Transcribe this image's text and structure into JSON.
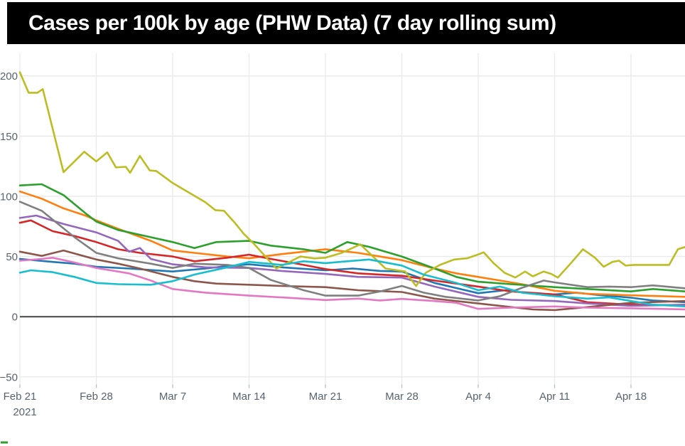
{
  "title_banner": {
    "text": "Cases per 100k by age (PHW Data) (7 day rolling sum)",
    "background": "#000000",
    "text_color": "#ffffff"
  },
  "chart_data": {
    "type": "line",
    "title": "Cases per 100k by age (PHW Data) (7 day rolling sum)",
    "xlabel": "",
    "ylabel": "",
    "x_ticks": [
      {
        "day": 0,
        "label": "Feb 21",
        "sublabel": "2021"
      },
      {
        "day": 7,
        "label": "Feb 28",
        "sublabel": ""
      },
      {
        "day": 14,
        "label": "Mar 7",
        "sublabel": ""
      },
      {
        "day": 21,
        "label": "Mar 14",
        "sublabel": ""
      },
      {
        "day": 28,
        "label": "Mar 21",
        "sublabel": ""
      },
      {
        "day": 35,
        "label": "Mar 28",
        "sublabel": ""
      },
      {
        "day": 42,
        "label": "Apr 4",
        "sublabel": ""
      },
      {
        "day": 49,
        "label": "Apr 11",
        "sublabel": ""
      },
      {
        "day": 56,
        "label": "Apr 18",
        "sublabel": ""
      }
    ],
    "y_ticks": [
      {
        "value": 200,
        "label": "200"
      },
      {
        "value": 150,
        "label": "150"
      },
      {
        "value": 100,
        "label": "100"
      },
      {
        "value": 50,
        "label": "50"
      },
      {
        "value": 0,
        "label": "0"
      },
      {
        "value": -50,
        "label": "−50"
      }
    ],
    "ylim": [
      -58,
      219
    ],
    "xlim_days": [
      0,
      61
    ],
    "grid": true,
    "zero_line_color": "#444444",
    "grid_color": "#e9e9e9",
    "tick_text_color": "#57636d",
    "legend_visible": false,
    "legend_fragment_color": "#2ca02c",
    "series": [
      {
        "name": "blue",
        "color": "#1f77b4",
        "points": [
          [
            0,
            48
          ],
          [
            3,
            45.5
          ],
          [
            5,
            44
          ],
          [
            7,
            41.5
          ],
          [
            10,
            40
          ],
          [
            14,
            37.5
          ],
          [
            17,
            40
          ],
          [
            19,
            42
          ],
          [
            21,
            43.5
          ],
          [
            24,
            41
          ],
          [
            28,
            38.5
          ],
          [
            30.5,
            40
          ],
          [
            33,
            38
          ],
          [
            35,
            37.5
          ],
          [
            38,
            28
          ],
          [
            42,
            19.5
          ],
          [
            44.5,
            22
          ],
          [
            47,
            19
          ],
          [
            49,
            18.5
          ],
          [
            51,
            20
          ],
          [
            53,
            18
          ],
          [
            56,
            15.8
          ],
          [
            58,
            13.5
          ],
          [
            61,
            12
          ]
        ]
      },
      {
        "name": "orange",
        "color": "#ff7f0e",
        "points": [
          [
            0,
            104
          ],
          [
            2,
            98
          ],
          [
            4,
            90
          ],
          [
            6,
            84
          ],
          [
            7,
            80
          ],
          [
            9,
            73
          ],
          [
            12,
            63
          ],
          [
            14,
            55
          ],
          [
            16,
            53
          ],
          [
            19,
            50
          ],
          [
            21,
            48.5
          ],
          [
            24,
            52
          ],
          [
            26,
            54
          ],
          [
            28,
            56
          ],
          [
            31,
            53
          ],
          [
            35,
            47
          ],
          [
            38,
            40
          ],
          [
            40,
            36
          ],
          [
            42,
            33
          ],
          [
            44,
            30
          ],
          [
            46,
            27
          ],
          [
            49,
            21.5
          ],
          [
            52,
            19
          ],
          [
            56,
            17.7
          ],
          [
            61,
            16.5
          ]
        ]
      },
      {
        "name": "green",
        "color": "#2ca02c",
        "points": [
          [
            0,
            109
          ],
          [
            2,
            110
          ],
          [
            4,
            101
          ],
          [
            6,
            86
          ],
          [
            7,
            79
          ],
          [
            9,
            72
          ],
          [
            12,
            66
          ],
          [
            14,
            62
          ],
          [
            16,
            57
          ],
          [
            18,
            62
          ],
          [
            21,
            63
          ],
          [
            23,
            59
          ],
          [
            26,
            56
          ],
          [
            28,
            53
          ],
          [
            30,
            62
          ],
          [
            32,
            58
          ],
          [
            35,
            50
          ],
          [
            38,
            40
          ],
          [
            40,
            33
          ],
          [
            42,
            29
          ],
          [
            45,
            27
          ],
          [
            49,
            24.5
          ],
          [
            52,
            23
          ],
          [
            56,
            21
          ],
          [
            58,
            23
          ],
          [
            61,
            21
          ]
        ]
      },
      {
        "name": "red",
        "color": "#d62728",
        "points": [
          [
            0,
            78
          ],
          [
            1,
            80
          ],
          [
            3,
            71
          ],
          [
            5,
            67
          ],
          [
            7,
            62
          ],
          [
            9,
            56
          ],
          [
            11,
            53
          ],
          [
            14,
            50
          ],
          [
            16,
            46
          ],
          [
            19,
            49
          ],
          [
            21,
            51.5
          ],
          [
            23,
            48
          ],
          [
            26,
            43
          ],
          [
            28,
            39.5
          ],
          [
            31,
            36
          ],
          [
            35,
            34
          ],
          [
            38,
            30
          ],
          [
            42,
            25
          ],
          [
            45,
            21
          ],
          [
            49,
            18.5
          ],
          [
            52,
            12
          ],
          [
            56,
            10
          ],
          [
            61,
            9.5
          ]
        ]
      },
      {
        "name": "purple",
        "color": "#9467bd",
        "points": [
          [
            0,
            82
          ],
          [
            1.5,
            84
          ],
          [
            4,
            77
          ],
          [
            7,
            70
          ],
          [
            9,
            63
          ],
          [
            10,
            54
          ],
          [
            11,
            57
          ],
          [
            12,
            48
          ],
          [
            14,
            43.5
          ],
          [
            17,
            41
          ],
          [
            21,
            40.5
          ],
          [
            24,
            38
          ],
          [
            28,
            35.5
          ],
          [
            31,
            33
          ],
          [
            35,
            32.5
          ],
          [
            38,
            25
          ],
          [
            42,
            16.5
          ],
          [
            45,
            14
          ],
          [
            49,
            13
          ],
          [
            52,
            11
          ],
          [
            56,
            9
          ],
          [
            61,
            10
          ]
        ]
      },
      {
        "name": "brown",
        "color": "#8c564b",
        "points": [
          [
            0,
            54
          ],
          [
            2,
            50.5
          ],
          [
            4,
            55
          ],
          [
            7,
            47.5
          ],
          [
            9,
            44
          ],
          [
            11,
            40
          ],
          [
            14,
            33
          ],
          [
            16,
            29.5
          ],
          [
            18,
            27.5
          ],
          [
            21,
            26.5
          ],
          [
            24,
            25.5
          ],
          [
            28,
            24.5
          ],
          [
            31,
            22
          ],
          [
            35,
            20.5
          ],
          [
            38,
            15
          ],
          [
            42,
            11
          ],
          [
            45,
            8
          ],
          [
            47,
            6
          ],
          [
            49,
            5.5
          ],
          [
            52,
            8
          ],
          [
            56,
            11.5
          ],
          [
            61,
            13
          ]
        ]
      },
      {
        "name": "pink",
        "color": "#e377c2",
        "points": [
          [
            0,
            46.5
          ],
          [
            2,
            48
          ],
          [
            3,
            49
          ],
          [
            5,
            45
          ],
          [
            7,
            40.5
          ],
          [
            10,
            36
          ],
          [
            12,
            30
          ],
          [
            14,
            23
          ],
          [
            17,
            20
          ],
          [
            21,
            17.5
          ],
          [
            24,
            16
          ],
          [
            28,
            13.8
          ],
          [
            31,
            15
          ],
          [
            33,
            13.5
          ],
          [
            35,
            14.8
          ],
          [
            38,
            13
          ],
          [
            40,
            11.5
          ],
          [
            42,
            6.5
          ],
          [
            45,
            7.5
          ],
          [
            49,
            8.5
          ],
          [
            52,
            7.5
          ],
          [
            56,
            7
          ],
          [
            61,
            6
          ]
        ]
      },
      {
        "name": "gray",
        "color": "#7f7f7f",
        "points": [
          [
            0,
            95.5
          ],
          [
            2,
            88
          ],
          [
            5,
            66
          ],
          [
            7,
            53
          ],
          [
            9,
            48.5
          ],
          [
            12,
            44
          ],
          [
            14,
            40.5
          ],
          [
            16,
            44
          ],
          [
            19,
            43
          ],
          [
            21,
            40.5
          ],
          [
            23,
            30.5
          ],
          [
            26,
            22
          ],
          [
            28,
            17.5
          ],
          [
            31,
            17.5
          ],
          [
            33,
            21
          ],
          [
            35,
            25.5
          ],
          [
            37,
            20
          ],
          [
            39,
            16.5
          ],
          [
            42,
            13.5
          ],
          [
            44,
            17
          ],
          [
            46,
            24
          ],
          [
            48,
            30
          ],
          [
            49,
            28.5
          ],
          [
            52,
            24.5
          ],
          [
            54,
            25
          ],
          [
            56,
            24.5
          ],
          [
            58,
            26
          ],
          [
            61,
            23.5
          ]
        ]
      },
      {
        "name": "olive",
        "color": "#bcbd22",
        "points": [
          [
            0,
            203
          ],
          [
            0.8,
            186
          ],
          [
            1.6,
            186
          ],
          [
            2.1,
            189
          ],
          [
            4,
            120
          ],
          [
            5.9,
            137
          ],
          [
            7,
            129
          ],
          [
            8,
            136.5
          ],
          [
            8.8,
            124
          ],
          [
            9.7,
            124.5
          ],
          [
            10.1,
            119.5
          ],
          [
            11,
            133.5
          ],
          [
            11.9,
            121.5
          ],
          [
            12.5,
            121
          ],
          [
            14,
            111
          ],
          [
            15.7,
            102
          ],
          [
            17,
            95
          ],
          [
            17.9,
            88.5
          ],
          [
            18.7,
            88
          ],
          [
            19.7,
            78
          ],
          [
            20.5,
            69
          ],
          [
            21.5,
            60
          ],
          [
            23.5,
            40
          ],
          [
            25.7,
            50
          ],
          [
            27,
            48.4
          ],
          [
            28,
            49
          ],
          [
            29.5,
            53
          ],
          [
            31.2,
            60
          ],
          [
            33.5,
            40
          ],
          [
            35.3,
            37.5
          ],
          [
            36.3,
            25.5
          ],
          [
            37.2,
            36.5
          ],
          [
            38.5,
            43
          ],
          [
            39.8,
            47.5
          ],
          [
            41,
            48.5
          ],
          [
            42.1,
            52
          ],
          [
            42.5,
            53.5
          ],
          [
            43.4,
            44.5
          ],
          [
            44.4,
            36.5
          ],
          [
            45.4,
            32.5
          ],
          [
            46.3,
            37.5
          ],
          [
            47,
            33.5
          ],
          [
            48,
            37.5
          ],
          [
            48.7,
            35.5
          ],
          [
            49.3,
            32.5
          ],
          [
            50.3,
            42.5
          ],
          [
            51.6,
            56
          ],
          [
            52.7,
            49
          ],
          [
            53.5,
            41.5
          ],
          [
            54.3,
            45.5
          ],
          [
            54.9,
            46.5
          ],
          [
            55.5,
            42.5
          ],
          [
            56.3,
            43
          ],
          [
            59.5,
            43
          ],
          [
            60.3,
            56
          ],
          [
            61,
            58
          ]
        ]
      },
      {
        "name": "cyan",
        "color": "#17becf",
        "points": [
          [
            0,
            36.5
          ],
          [
            1,
            38.5
          ],
          [
            3,
            37
          ],
          [
            5,
            33
          ],
          [
            7,
            28
          ],
          [
            9,
            27
          ],
          [
            12,
            26.5
          ],
          [
            14,
            29.5
          ],
          [
            16,
            35
          ],
          [
            19,
            41
          ],
          [
            21,
            45.5
          ],
          [
            24,
            43
          ],
          [
            26,
            46
          ],
          [
            28,
            44.5
          ],
          [
            30,
            46
          ],
          [
            32,
            47.5
          ],
          [
            35,
            42.5
          ],
          [
            37,
            35
          ],
          [
            40,
            28
          ],
          [
            42,
            22
          ],
          [
            44,
            25
          ],
          [
            46,
            20
          ],
          [
            49,
            17
          ],
          [
            52,
            15
          ],
          [
            54,
            16
          ],
          [
            56,
            13
          ],
          [
            58,
            10
          ],
          [
            61,
            8.5
          ]
        ]
      }
    ]
  }
}
